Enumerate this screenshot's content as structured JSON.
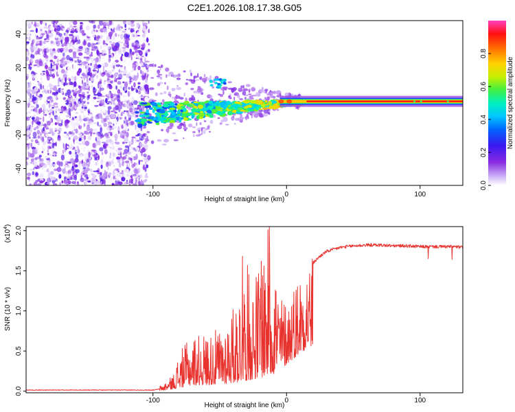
{
  "title": "C2E1.2026.108.17.38.G05",
  "colors": {
    "snr_line": "#e8322e",
    "colormap": [
      "#ffffff",
      "#c8a8f4",
      "#7a1ee6",
      "#2a1cf2",
      "#00aaff",
      "#00f0d0",
      "#30ee30",
      "#f0ea00",
      "#ff8800",
      "#ff0000",
      "#ff3cb4"
    ],
    "axis": "#000000"
  },
  "chart_data": [
    {
      "id": "spectrogram",
      "type": "heatmap",
      "title": "C2E1.2026.108.17.38.G05",
      "xlabel": "Height of straight line (km)",
      "ylabel": "Frequency (Hz)",
      "xlim": [
        -195,
        132
      ],
      "ylim": [
        -50,
        48
      ],
      "xticks": [
        -100,
        0,
        100
      ],
      "xtick_labels": [
        "-100",
        "0",
        "100"
      ],
      "yticks": [
        -40,
        -20,
        0,
        20,
        40
      ],
      "ytick_labels": [
        "-40",
        "-20",
        "0",
        "20",
        "40"
      ],
      "features": {
        "noise_region_x": [
          -195,
          -103
        ],
        "transition_region_x": [
          -110,
          20
        ],
        "stable_tone_frequency_hz": 0,
        "stable_tone_x": [
          20,
          132
        ]
      },
      "colorbar": {
        "label": "Normalized spectral amplitude",
        "range": [
          0,
          1
        ],
        "ticks": [
          0.0,
          0.2,
          0.4,
          0.6,
          0.8
        ],
        "tick_labels": [
          "0.0",
          "0.2",
          "0.4",
          "0.6",
          "0.8"
        ]
      }
    },
    {
      "id": "snr",
      "type": "line",
      "xlabel": "Height of straight line (km)",
      "ylabel": "SNR (10 * v/v)",
      "scale_label": "(x10",
      "scale_exponent": "4",
      "scale_close": ")",
      "xlim": [
        -195,
        132
      ],
      "ylim": [
        -0.02,
        2.05
      ],
      "xticks": [
        -100,
        0,
        100
      ],
      "xtick_labels": [
        "-100",
        "0",
        "100"
      ],
      "yticks": [
        0.0,
        0.5,
        1.0,
        1.5,
        2.0
      ],
      "ytick_labels": [
        "0.0",
        "0.5",
        "1.0",
        "1.5",
        "2.0"
      ],
      "series": [
        {
          "name": "SNR",
          "envelope": {
            "x": [
              -195,
              -100,
              -92,
              -85,
              -80,
              -75,
              -70,
              -60,
              -50,
              -40,
              -35,
              -30,
              -25,
              -20,
              -15,
              -10,
              -5,
              0,
              5,
              10,
              15,
              20,
              25,
              30,
              40,
              50,
              60,
              70,
              80,
              90,
              100,
              110,
              120,
              125,
              132
            ],
            "base": [
              0.01,
              0.01,
              0.03,
              0.08,
              0.12,
              0.18,
              0.22,
              0.22,
              0.24,
              0.3,
              0.32,
              0.38,
              0.42,
              0.48,
              0.52,
              0.6,
              0.75,
              0.95,
              1.15,
              1.35,
              1.5,
              1.6,
              1.68,
              1.74,
              1.79,
              1.81,
              1.82,
              1.82,
              1.81,
              1.81,
              1.8,
              1.8,
              1.8,
              1.8,
              1.79
            ],
            "peak": [
              0.02,
              0.03,
              0.09,
              0.2,
              0.5,
              0.6,
              0.7,
              0.72,
              0.78,
              1.05,
              1.35,
              1.6,
              1.45,
              1.62,
              2.05,
              1.9,
              1.22,
              1.15,
              1.35,
              1.52,
              1.65,
              1.72,
              1.78,
              1.84,
              1.86,
              1.86,
              1.87,
              1.86,
              1.86,
              1.87,
              1.9,
              1.85,
              1.9,
              1.88,
              1.84
            ]
          },
          "notable_points": [
            {
              "x": -13,
              "y": 2.05
            },
            {
              "x": -33,
              "y": 1.68
            },
            {
              "x": -19,
              "y": 1.62
            },
            {
              "x": 106,
              "y": 1.65
            },
            {
              "x": 124,
              "y": 1.64
            }
          ]
        }
      ]
    }
  ]
}
